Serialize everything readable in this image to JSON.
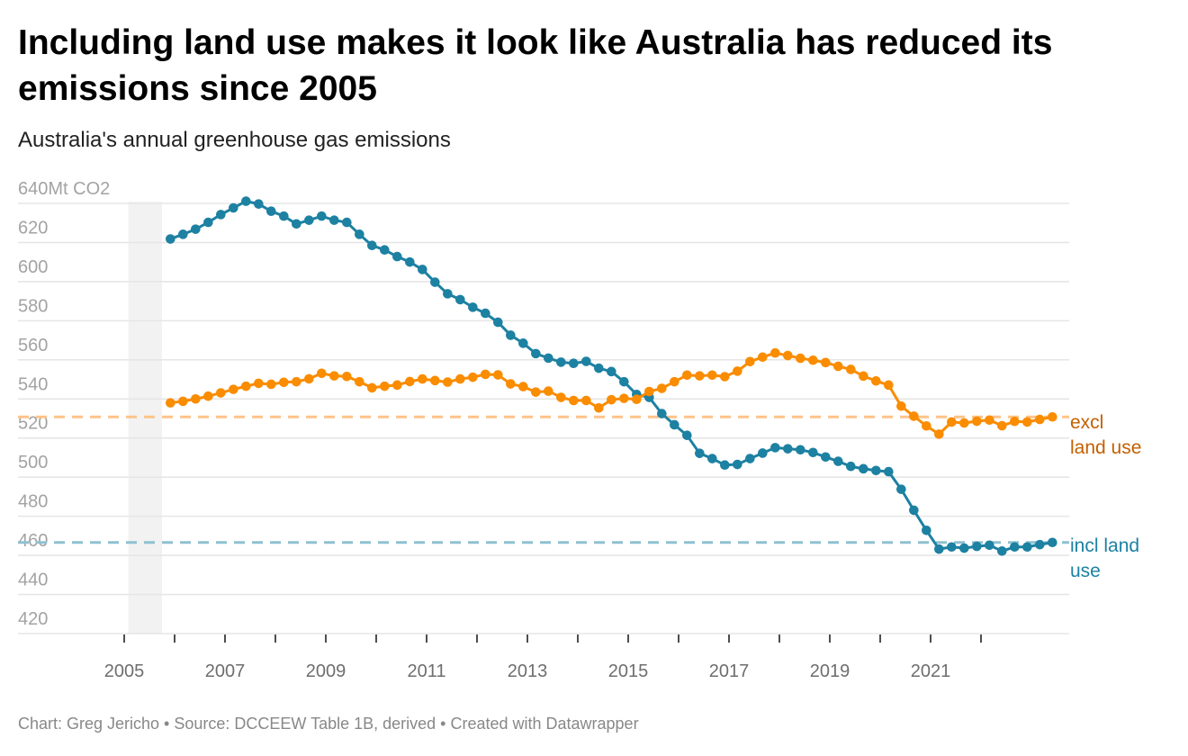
{
  "title": "Including land use makes it look like Australia has reduced its emissions since 2005",
  "subtitle": "Australia's annual greenhouse gas emissions",
  "footer": "Chart: Greg Jericho • Source: DCCEEW Table 1B, derived • Created with Datawrapper",
  "chart_data": {
    "type": "line",
    "title": "Including land use makes it look like Australia has reduced its emissions since 2005",
    "subtitle": "Australia's annual greenhouse gas emissions",
    "ylabel": "",
    "y_unit": "Mt CO2",
    "ylim": [
      420,
      640
    ],
    "y_ticks": [
      640,
      620,
      600,
      580,
      560,
      540,
      520,
      500,
      480,
      460,
      440,
      420
    ],
    "y_tick_labels": [
      "640Mt CO2",
      "620",
      "600",
      "580",
      "560",
      "540",
      "520",
      "500",
      "480",
      "460",
      "440",
      "420"
    ],
    "x_ticks": [
      2005,
      2006,
      2007,
      2008,
      2009,
      2010,
      2011,
      2012,
      2013,
      2014,
      2015,
      2016,
      2017,
      2018,
      2019,
      2020,
      2021,
      2022
    ],
    "x_tick_labels": [
      "2005",
      "2007",
      "2009",
      "2011",
      "2013",
      "2015",
      "2017",
      "2019",
      "2021"
    ],
    "grid": true,
    "legend": "direct labels at right end of lines",
    "highlight_range": [
      "2005-02",
      "2005-10"
    ],
    "start": "2005-12",
    "frequency": "quarterly",
    "series": [
      {
        "name": "incl land use",
        "color": "#1d81a2",
        "reference_line_color": "#8fc1d1",
        "values": [
          621.8,
          624.2,
          626.8,
          630.3,
          634.3,
          637.7,
          641.1,
          639.7,
          636.0,
          633.5,
          629.5,
          631.4,
          633.5,
          631.4,
          630.3,
          624.2,
          618.5,
          616.2,
          612.8,
          610.0,
          606.2,
          599.7,
          593.8,
          590.8,
          586.9,
          583.8,
          579.2,
          572.6,
          568.5,
          563.2,
          560.9,
          558.8,
          558.2,
          559.2,
          555.7,
          554.0,
          548.8,
          542.3,
          540.8,
          532.5,
          526.8,
          521.4,
          512.2,
          509.5,
          506.2,
          506.5,
          509.5,
          512.3,
          515.1,
          514.5,
          514.0,
          512.6,
          510.3,
          508.1,
          505.5,
          504.3,
          503.4,
          502.8,
          493.8,
          483.1,
          472.8,
          463.2,
          464.3,
          463.7,
          464.6,
          465.2,
          462.2,
          464.3,
          464.3,
          465.5,
          466.6
        ]
      },
      {
        "name": "excl land use",
        "color": "#fa8c00",
        "label_color": "#c45f00",
        "reference_line_color": "#fdc489",
        "values": [
          538.0,
          538.8,
          540.0,
          541.4,
          543.1,
          544.9,
          546.5,
          548.0,
          547.5,
          548.5,
          548.8,
          550.3,
          553.1,
          551.8,
          551.5,
          548.8,
          545.7,
          546.5,
          547.1,
          548.9,
          550.2,
          549.4,
          548.6,
          550.2,
          551.1,
          552.6,
          552.3,
          547.7,
          546.3,
          543.5,
          544.0,
          540.8,
          539.2,
          539.2,
          535.4,
          539.6,
          540.3,
          539.8,
          543.8,
          545.4,
          548.8,
          552.2,
          551.8,
          552.2,
          551.4,
          554.2,
          559.1,
          561.4,
          563.5,
          562.2,
          560.8,
          559.8,
          558.6,
          556.7,
          555.1,
          551.7,
          549.2,
          547.1,
          536.3,
          531.2,
          526.2,
          522.0,
          528.2,
          527.7,
          528.6,
          529.2,
          526.3,
          528.5,
          528.2,
          529.5,
          530.8
        ]
      }
    ],
    "end_labels": {
      "excl": [
        "excl",
        "land use"
      ],
      "incl": [
        "incl land",
        "use"
      ]
    }
  }
}
